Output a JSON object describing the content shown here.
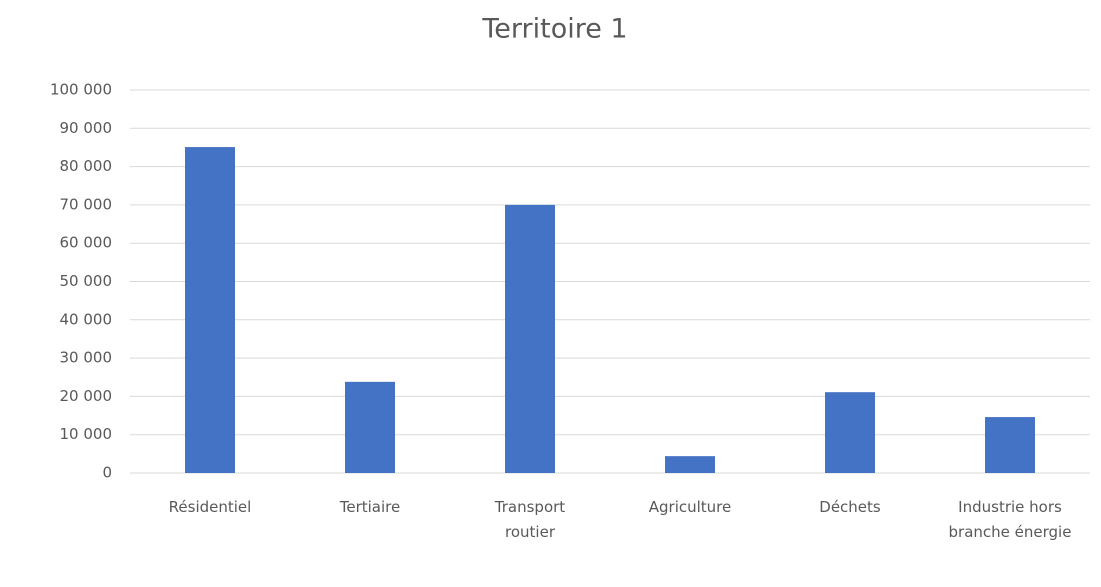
{
  "chart_data": {
    "type": "bar",
    "title": "Territoire 1",
    "categories": [
      "Résidentiel",
      "Tertiaire",
      "Transport routier",
      "Agriculture",
      "Déchets",
      "Industrie hors branche énergie"
    ],
    "values": [
      85100,
      23800,
      70000,
      4400,
      21100,
      14600
    ],
    "color": "#4472c4",
    "ylim": [
      0,
      100000
    ],
    "yticks": [
      0,
      {
        "value": 10000,
        "label": "10 000"
      },
      {
        "value": 20000,
        "label": "20 000"
      },
      {
        "value": 30000,
        "label": "30 000"
      },
      {
        "value": 40000,
        "label": "40 000"
      },
      {
        "value": 50000,
        "label": "50 000"
      },
      {
        "value": 60000,
        "label": "60 000"
      },
      {
        "value": 70000,
        "label": "70 000"
      },
      {
        "value": 80000,
        "label": "80 000"
      },
      {
        "value": 90000,
        "label": "90 000"
      },
      {
        "value": 100000,
        "label": "100 000"
      }
    ],
    "grid": true
  }
}
